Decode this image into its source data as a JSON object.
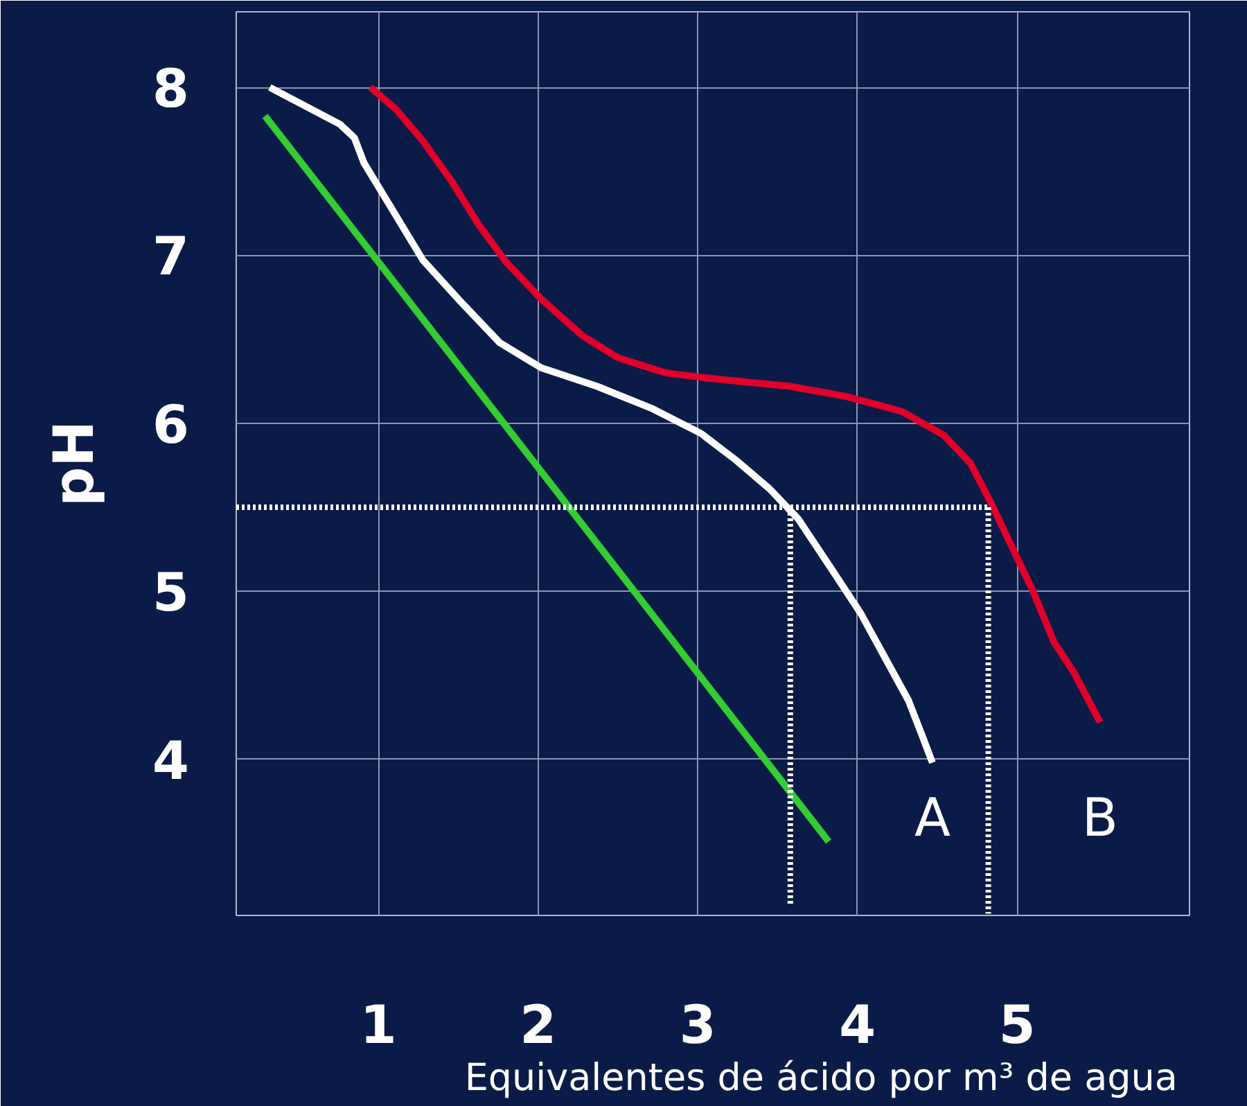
{
  "chart_data": {
    "type": "line",
    "xlabel": "Equivalentes de ácido por m³  de agua",
    "ylabel": "pH",
    "xlim": [
      0.11,
      6.08
    ],
    "ylim": [
      3.07,
      8.45
    ],
    "xticks": [
      1,
      2,
      3,
      4,
      5
    ],
    "yticks": [
      4,
      5,
      6,
      7,
      8
    ],
    "grid": true,
    "marker": "none",
    "series": [
      {
        "color": "#33cc33",
        "line_style": "solid",
        "x": [
          0.29,
          3.82
        ],
        "values": [
          7.83,
          3.51
        ]
      },
      {
        "color": "#ffffff",
        "line_style": "solid",
        "x": [
          0.32,
          0.5,
          0.76,
          0.85,
          0.91,
          1.07,
          1.28,
          1.5,
          1.76,
          2.02,
          2.37,
          2.71,
          3.02,
          3.24,
          3.45,
          3.63,
          3.84,
          4.02,
          4.17,
          4.32,
          4.41,
          4.47
        ],
        "values": [
          8.0,
          7.91,
          7.78,
          7.7,
          7.55,
          7.3,
          6.97,
          6.74,
          6.48,
          6.33,
          6.22,
          6.09,
          5.94,
          5.78,
          5.61,
          5.43,
          5.13,
          4.87,
          4.61,
          4.35,
          4.13,
          3.98
        ]
      },
      {
        "color": "#e0002a",
        "line_style": "solid",
        "x": [
          0.95,
          1.11,
          1.28,
          1.46,
          1.63,
          1.8,
          2.02,
          2.28,
          2.5,
          2.8,
          3.15,
          3.58,
          3.93,
          4.28,
          4.54,
          4.71,
          4.84,
          4.97,
          5.1,
          5.23,
          5.36,
          5.52
        ],
        "values": [
          8.0,
          7.87,
          7.68,
          7.44,
          7.18,
          6.96,
          6.74,
          6.52,
          6.39,
          6.3,
          6.26,
          6.22,
          6.16,
          6.07,
          5.93,
          5.76,
          5.52,
          5.26,
          5.0,
          4.7,
          4.51,
          4.22
        ]
      },
      {
        "color": "#ffffff",
        "line_style": "dotted",
        "x": [
          0.11,
          4.82
        ],
        "values": [
          5.5,
          5.5
        ]
      },
      {
        "color": "#ffffff",
        "line_style": "dotted",
        "x": [
          3.58,
          3.58
        ],
        "values": [
          5.5,
          3.13
        ]
      },
      {
        "color": "#ffffff",
        "line_style": "dotted",
        "x": [
          4.82,
          4.82
        ],
        "values": [
          5.5,
          3.08
        ]
      }
    ],
    "annotations": [
      "A",
      "B"
    ]
  }
}
